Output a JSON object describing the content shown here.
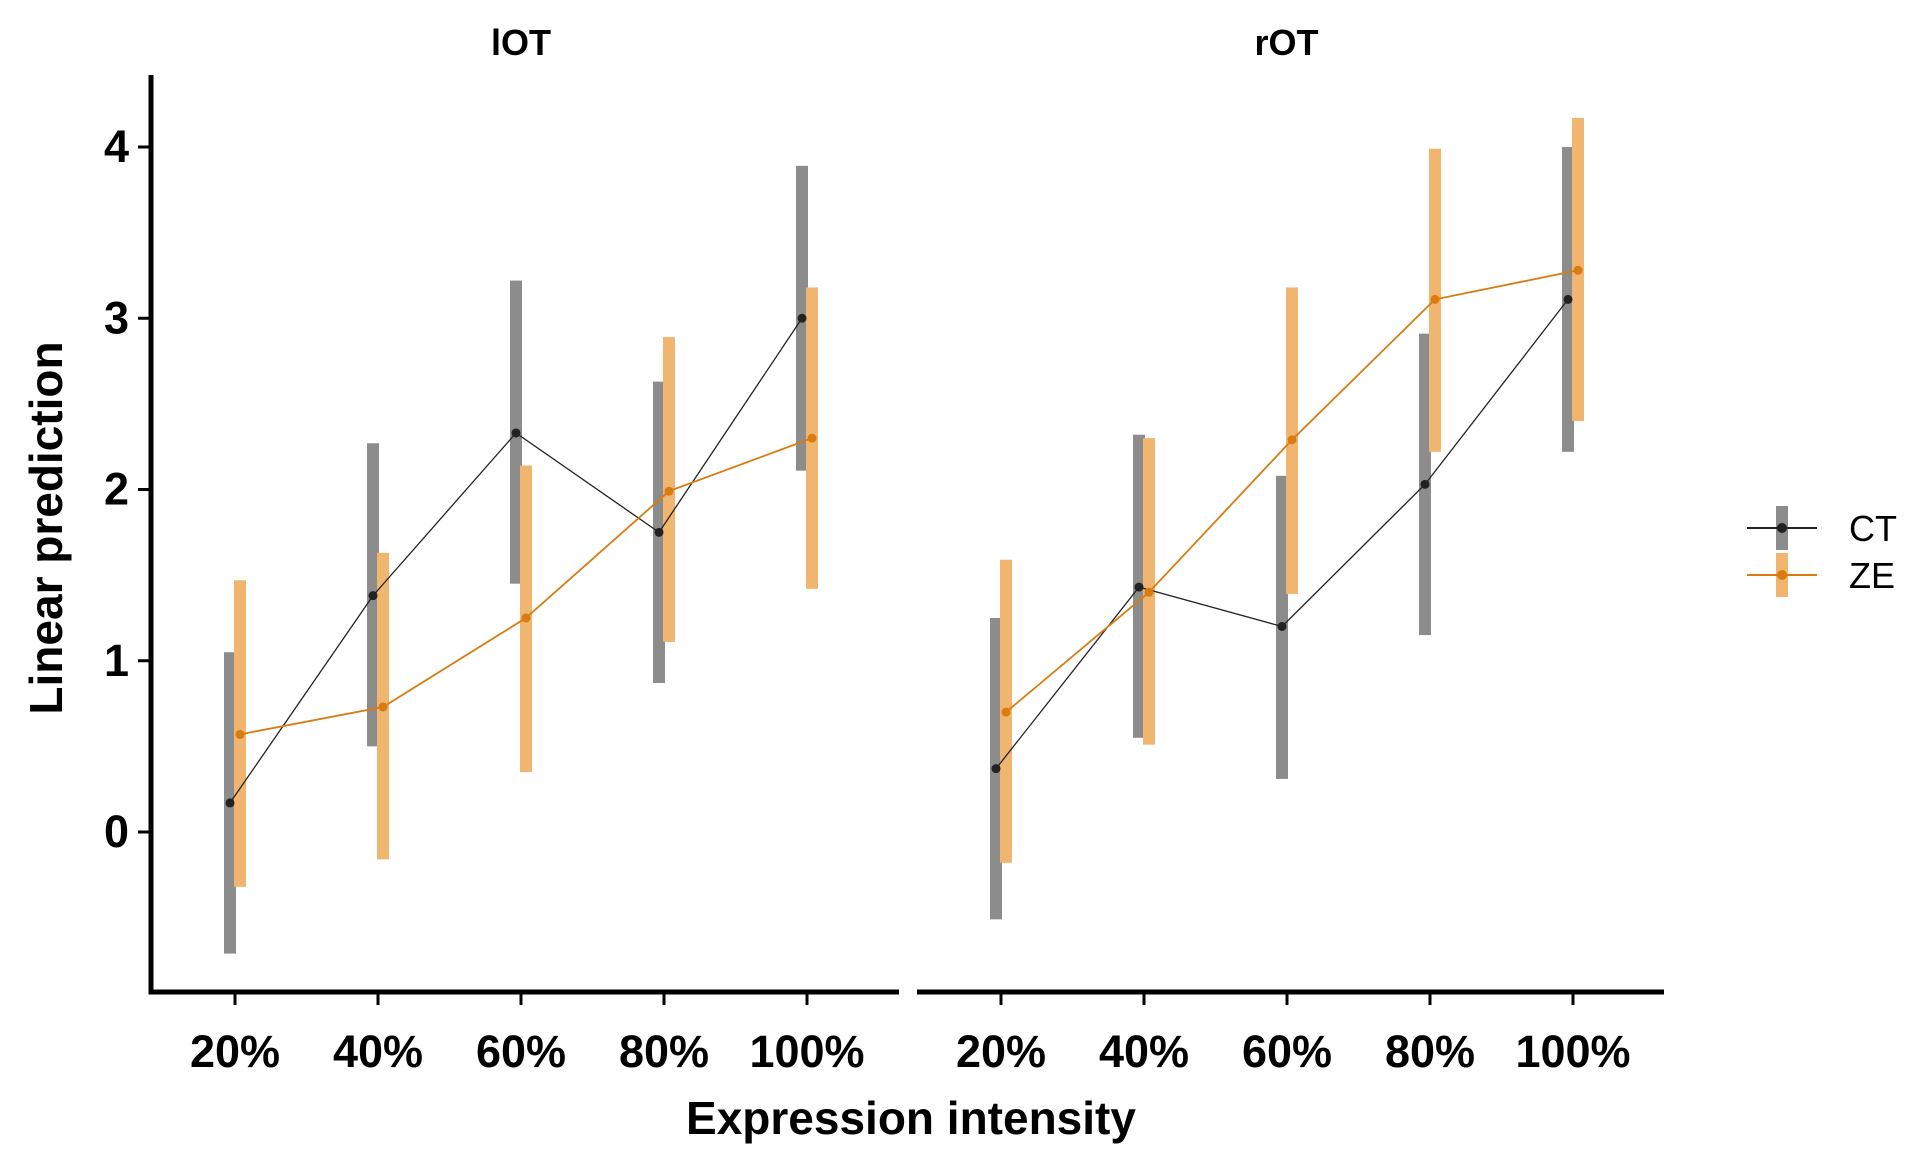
{
  "chart_data": {
    "type": "line",
    "xlabel": "Expression intensity",
    "ylabel": "Linear prediction",
    "categories": [
      "20%",
      "40%",
      "60%",
      "80%",
      "100%"
    ],
    "yticks": [
      0,
      1,
      2,
      3,
      4
    ],
    "ylim": [
      -0.95,
      4.4
    ],
    "legend_position": "right",
    "grid": false,
    "series_styles": [
      {
        "name": "CT",
        "line_color": "#222222",
        "bar_color": "#8c8c8c"
      },
      {
        "name": "ZE",
        "line_color": "#d97b10",
        "bar_color": "#f0b56e"
      }
    ],
    "panels": [
      {
        "title": "lOT",
        "series": [
          {
            "name": "CT",
            "values": [
              0.17,
              1.38,
              2.33,
              1.75,
              3.0
            ],
            "lower": [
              -0.71,
              0.5,
              1.45,
              0.87,
              2.11
            ],
            "upper": [
              1.05,
              2.27,
              3.22,
              2.63,
              3.89
            ]
          },
          {
            "name": "ZE",
            "values": [
              0.57,
              0.73,
              1.25,
              1.99,
              2.3
            ],
            "lower": [
              -0.32,
              -0.16,
              0.35,
              1.11,
              1.42
            ],
            "upper": [
              1.47,
              1.63,
              2.14,
              2.89,
              3.18
            ]
          }
        ]
      },
      {
        "title": "rOT",
        "series": [
          {
            "name": "CT",
            "values": [
              0.37,
              1.43,
              1.2,
              2.03,
              3.11
            ],
            "lower": [
              -0.51,
              0.55,
              0.31,
              1.15,
              2.22
            ],
            "upper": [
              1.25,
              2.32,
              2.08,
              2.91,
              4.0
            ]
          },
          {
            "name": "ZE",
            "values": [
              0.7,
              1.4,
              2.29,
              3.11,
              3.28
            ],
            "lower": [
              -0.18,
              0.51,
              1.39,
              2.22,
              2.4
            ],
            "upper": [
              1.59,
              2.3,
              3.18,
              3.99,
              4.17
            ]
          }
        ]
      }
    ]
  }
}
